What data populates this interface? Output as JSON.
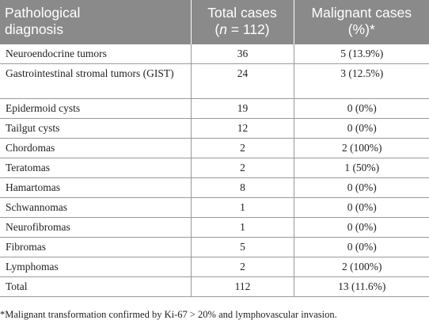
{
  "table": {
    "headers": {
      "col1_line1": "Pathological",
      "col1_line2": "diagnosis",
      "col2_line1": "Total cases",
      "col2_n": "n",
      "col2_rest": " = 112)",
      "col2_open": "(",
      "col3_line1": "Malignant cases",
      "col3_line2": "(%)*"
    },
    "rows": [
      {
        "diagnosis": "Neuroendocrine tumors",
        "total": "36",
        "malignant": "5 (13.9%)"
      },
      {
        "diagnosis": "Gastrointestinal stromal tumors (GIST)",
        "total": "24",
        "malignant": "3 (12.5%)"
      },
      {
        "diagnosis": "Epidermoid cysts",
        "total": "19",
        "malignant": "0 (0%)"
      },
      {
        "diagnosis": "Tailgut cysts",
        "total": "12",
        "malignant": "0 (0%)"
      },
      {
        "diagnosis": "Chordomas",
        "total": "2",
        "malignant": "2 (100%)"
      },
      {
        "diagnosis": "Teratomas",
        "total": "2",
        "malignant": "1 (50%)"
      },
      {
        "diagnosis": "Hamartomas",
        "total": "8",
        "malignant": "0 (0%)"
      },
      {
        "diagnosis": "Schwannomas",
        "total": "1",
        "malignant": "0 (0%)"
      },
      {
        "diagnosis": "Neurofibromas",
        "total": "1",
        "malignant": "0 (0%)"
      },
      {
        "diagnosis": "Fibromas",
        "total": "5",
        "malignant": "0 (0%)"
      },
      {
        "diagnosis": "Lymphomas",
        "total": "2",
        "malignant": "2 (100%)"
      },
      {
        "diagnosis": "Total",
        "total": "112",
        "malignant": "13 (11.6%)"
      }
    ]
  },
  "footnote": "*Malignant transformation confirmed by Ki-67 > 20% and lymphovascular invasion.",
  "colors": {
    "header_bg": "#8a8a8a",
    "header_text": "#ffffff",
    "rule": "#9a9a9a"
  }
}
